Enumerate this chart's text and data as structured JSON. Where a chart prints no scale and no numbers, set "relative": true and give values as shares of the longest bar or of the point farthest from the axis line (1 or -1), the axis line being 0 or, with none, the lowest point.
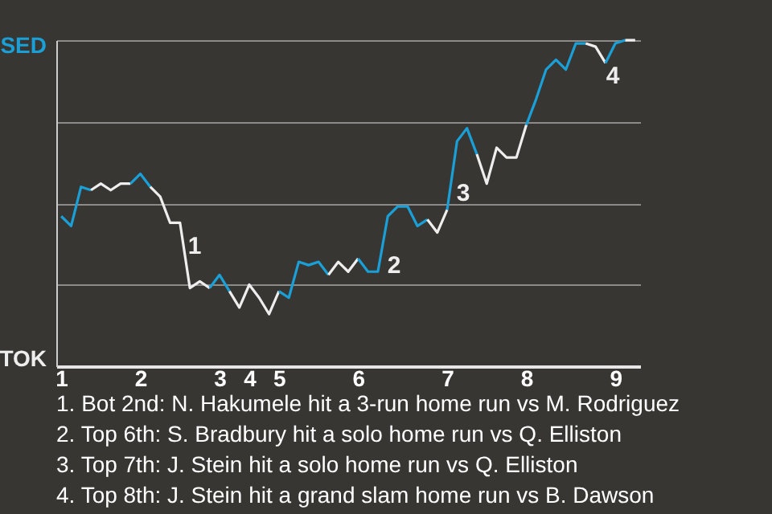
{
  "chart_data": {
    "type": "line",
    "relative": true,
    "categories": [
      "1",
      null,
      null,
      null,
      null,
      null,
      null,
      null,
      "2",
      null,
      null,
      null,
      null,
      null,
      null,
      null,
      "3",
      null,
      null,
      "4",
      null,
      null,
      "5",
      null,
      null,
      null,
      null,
      null,
      null,
      null,
      "6",
      null,
      null,
      null,
      null,
      null,
      null,
      null,
      null,
      "7",
      null,
      null,
      null,
      null,
      null,
      null,
      null,
      "8",
      null,
      null,
      null,
      null,
      null,
      null,
      null,
      null,
      "9",
      null,
      null
    ],
    "series": [
      {
        "color": "#1a9fd6",
        "values": [
          0.46,
          0.43,
          0.55,
          0.54,
          null,
          null,
          null,
          null,
          null,
          null,
          null,
          null,
          null,
          null,
          null,
          null,
          null,
          null,
          null,
          null,
          null,
          null,
          null,
          null,
          null,
          null,
          null,
          null,
          null,
          null,
          null,
          null,
          null,
          null,
          null,
          null,
          null,
          null,
          null,
          null,
          null,
          null,
          null,
          null,
          null,
          null,
          null,
          null,
          null,
          null,
          null,
          null,
          null,
          null,
          null,
          null,
          null,
          null,
          null
        ]
      },
      {
        "color": "#eeeeee",
        "values": [
          null,
          null,
          null,
          0.54,
          0.56,
          0.54,
          0.56,
          0.56,
          null,
          null,
          null,
          null,
          null,
          null,
          null,
          null,
          null,
          null,
          null,
          null,
          null,
          null,
          null,
          null,
          null,
          null,
          null,
          null,
          null,
          null,
          null,
          null,
          null,
          null,
          null,
          null,
          null,
          null,
          null,
          null,
          null,
          null,
          null,
          null,
          null,
          null,
          null,
          null,
          null,
          null,
          null,
          null,
          null,
          null,
          null,
          null,
          null,
          null,
          null
        ]
      },
      {
        "color": "#1a9fd6",
        "values": [
          null,
          null,
          null,
          null,
          null,
          null,
          null,
          0.56,
          0.59,
          0.55,
          null,
          null,
          null,
          null,
          null,
          null,
          null,
          null,
          null,
          null,
          null,
          null,
          null,
          null,
          null,
          null,
          null,
          null,
          null,
          null,
          null,
          null,
          null,
          null,
          null,
          null,
          null,
          null,
          null,
          null,
          null,
          null,
          null,
          null,
          null,
          null,
          null,
          null,
          null,
          null,
          null,
          null,
          null,
          null,
          null,
          null,
          null,
          null,
          null
        ]
      },
      {
        "color": "#eeeeee",
        "values": [
          null,
          null,
          null,
          null,
          null,
          null,
          null,
          null,
          null,
          0.55,
          0.52,
          0.44,
          0.44,
          0.24,
          0.26,
          0.24,
          null,
          null,
          null,
          null,
          null,
          null,
          null,
          null,
          null,
          null,
          null,
          null,
          null,
          null,
          null,
          null,
          null,
          null,
          null,
          null,
          null,
          null,
          null,
          null,
          null,
          null,
          null,
          null,
          null,
          null,
          null,
          null,
          null,
          null,
          null,
          null,
          null,
          null,
          null,
          null,
          null,
          null,
          null
        ]
      },
      {
        "color": "#1a9fd6",
        "values": [
          null,
          null,
          null,
          null,
          null,
          null,
          null,
          null,
          null,
          null,
          null,
          null,
          null,
          null,
          null,
          0.24,
          0.28,
          0.23,
          null,
          null,
          null,
          null,
          null,
          null,
          null,
          null,
          null,
          null,
          null,
          null,
          null,
          null,
          null,
          null,
          null,
          null,
          null,
          null,
          null,
          null,
          null,
          null,
          null,
          null,
          null,
          null,
          null,
          null,
          null,
          null,
          null,
          null,
          null,
          null,
          null,
          null,
          null,
          null,
          null
        ]
      },
      {
        "color": "#eeeeee",
        "values": [
          null,
          null,
          null,
          null,
          null,
          null,
          null,
          null,
          null,
          null,
          null,
          null,
          null,
          null,
          null,
          null,
          null,
          0.23,
          0.18,
          0.25,
          0.21,
          0.16,
          0.23,
          null,
          null,
          null,
          null,
          null,
          null,
          null,
          null,
          null,
          null,
          null,
          null,
          null,
          null,
          null,
          null,
          null,
          null,
          null,
          null,
          null,
          null,
          null,
          null,
          null,
          null,
          null,
          null,
          null,
          null,
          null,
          null,
          null,
          null,
          null,
          null
        ]
      },
      {
        "color": "#1a9fd6",
        "values": [
          null,
          null,
          null,
          null,
          null,
          null,
          null,
          null,
          null,
          null,
          null,
          null,
          null,
          null,
          null,
          null,
          null,
          null,
          null,
          null,
          null,
          null,
          0.23,
          0.21,
          0.32,
          0.31,
          0.32,
          0.28,
          null,
          null,
          null,
          null,
          null,
          null,
          null,
          null,
          null,
          null,
          null,
          null,
          null,
          null,
          null,
          null,
          null,
          null,
          null,
          null,
          null,
          null,
          null,
          null,
          null,
          null,
          null,
          null,
          null,
          null,
          null
        ]
      },
      {
        "color": "#eeeeee",
        "values": [
          null,
          null,
          null,
          null,
          null,
          null,
          null,
          null,
          null,
          null,
          null,
          null,
          null,
          null,
          null,
          null,
          null,
          null,
          null,
          null,
          null,
          null,
          null,
          null,
          null,
          null,
          null,
          0.28,
          0.32,
          0.29,
          0.33,
          null,
          null,
          null,
          null,
          null,
          null,
          null,
          null,
          null,
          null,
          null,
          null,
          null,
          null,
          null,
          null,
          null,
          null,
          null,
          null,
          null,
          null,
          null,
          null,
          null,
          null,
          null,
          null
        ]
      },
      {
        "color": "#1a9fd6",
        "values": [
          null,
          null,
          null,
          null,
          null,
          null,
          null,
          null,
          null,
          null,
          null,
          null,
          null,
          null,
          null,
          null,
          null,
          null,
          null,
          null,
          null,
          null,
          null,
          null,
          null,
          null,
          null,
          null,
          null,
          null,
          0.33,
          0.29,
          0.29,
          0.46,
          0.49,
          0.49,
          0.43,
          0.45,
          null,
          null,
          null,
          null,
          null,
          null,
          null,
          null,
          null,
          null,
          null,
          null,
          null,
          null,
          null,
          null,
          null,
          null,
          null,
          null,
          null
        ]
      },
      {
        "color": "#eeeeee",
        "values": [
          null,
          null,
          null,
          null,
          null,
          null,
          null,
          null,
          null,
          null,
          null,
          null,
          null,
          null,
          null,
          null,
          null,
          null,
          null,
          null,
          null,
          null,
          null,
          null,
          null,
          null,
          null,
          null,
          null,
          null,
          null,
          null,
          null,
          null,
          null,
          null,
          null,
          0.45,
          0.41,
          0.48,
          null,
          null,
          null,
          null,
          null,
          null,
          null,
          null,
          null,
          null,
          null,
          null,
          null,
          null,
          null,
          null,
          null,
          null,
          null
        ]
      },
      {
        "color": "#1a9fd6",
        "values": [
          null,
          null,
          null,
          null,
          null,
          null,
          null,
          null,
          null,
          null,
          null,
          null,
          null,
          null,
          null,
          null,
          null,
          null,
          null,
          null,
          null,
          null,
          null,
          null,
          null,
          null,
          null,
          null,
          null,
          null,
          null,
          null,
          null,
          null,
          null,
          null,
          null,
          null,
          null,
          0.48,
          0.69,
          0.73,
          0.65,
          null,
          null,
          null,
          null,
          null,
          null,
          null,
          null,
          null,
          null,
          null,
          null,
          null,
          null,
          null,
          null
        ]
      },
      {
        "color": "#eeeeee",
        "values": [
          null,
          null,
          null,
          null,
          null,
          null,
          null,
          null,
          null,
          null,
          null,
          null,
          null,
          null,
          null,
          null,
          null,
          null,
          null,
          null,
          null,
          null,
          null,
          null,
          null,
          null,
          null,
          null,
          null,
          null,
          null,
          null,
          null,
          null,
          null,
          null,
          null,
          null,
          null,
          null,
          null,
          null,
          0.65,
          0.56,
          0.67,
          0.64,
          0.64,
          0.74,
          null,
          null,
          null,
          null,
          null,
          null,
          null,
          null,
          null,
          null,
          null
        ]
      },
      {
        "color": "#1a9fd6",
        "values": [
          null,
          null,
          null,
          null,
          null,
          null,
          null,
          null,
          null,
          null,
          null,
          null,
          null,
          null,
          null,
          null,
          null,
          null,
          null,
          null,
          null,
          null,
          null,
          null,
          null,
          null,
          null,
          null,
          null,
          null,
          null,
          null,
          null,
          null,
          null,
          null,
          null,
          null,
          null,
          null,
          null,
          null,
          null,
          null,
          null,
          null,
          null,
          0.74,
          0.82,
          0.91,
          0.94,
          0.91,
          0.99,
          0.99,
          null,
          null,
          null,
          null,
          null
        ]
      },
      {
        "color": "#eeeeee",
        "values": [
          null,
          null,
          null,
          null,
          null,
          null,
          null,
          null,
          null,
          null,
          null,
          null,
          null,
          null,
          null,
          null,
          null,
          null,
          null,
          null,
          null,
          null,
          null,
          null,
          null,
          null,
          null,
          null,
          null,
          null,
          null,
          null,
          null,
          null,
          null,
          null,
          null,
          null,
          null,
          null,
          null,
          null,
          null,
          null,
          null,
          null,
          null,
          null,
          null,
          null,
          null,
          null,
          null,
          0.99,
          0.98,
          0.93,
          null,
          null,
          null
        ]
      },
      {
        "color": "#1a9fd6",
        "values": [
          null,
          null,
          null,
          null,
          null,
          null,
          null,
          null,
          null,
          null,
          null,
          null,
          null,
          null,
          null,
          null,
          null,
          null,
          null,
          null,
          null,
          null,
          null,
          null,
          null,
          null,
          null,
          null,
          null,
          null,
          null,
          null,
          null,
          null,
          null,
          null,
          null,
          null,
          null,
          null,
          null,
          null,
          null,
          null,
          null,
          null,
          null,
          null,
          null,
          null,
          null,
          null,
          null,
          null,
          null,
          0.93,
          0.99,
          1,
          null
        ]
      },
      {
        "color": "#eeeeee",
        "values": [
          null,
          null,
          null,
          null,
          null,
          null,
          null,
          null,
          null,
          null,
          null,
          null,
          null,
          null,
          null,
          null,
          null,
          null,
          null,
          null,
          null,
          null,
          null,
          null,
          null,
          null,
          null,
          null,
          null,
          null,
          null,
          null,
          null,
          null,
          null,
          null,
          null,
          null,
          null,
          null,
          null,
          null,
          null,
          null,
          null,
          null,
          null,
          null,
          null,
          null,
          null,
          null,
          null,
          null,
          null,
          null,
          null,
          1,
          1
        ]
      }
    ],
    "grid": "y",
    "annotations": [
      "SED",
      "TOK",
      "1",
      "2",
      "3",
      "4",
      "1. Bot 2nd: N. Hakumele hit a 3-run home run vs M. Rodriguez",
      "2. Top 6th: S. Bradbury hit a solo home run vs Q. Elliston",
      "3. Top 7th: J. Stein hit a solo home run vs Q. Elliston",
      "4. Top 8th: J. Stein hit a grand slam home run vs B. Dawson"
    ]
  }
}
